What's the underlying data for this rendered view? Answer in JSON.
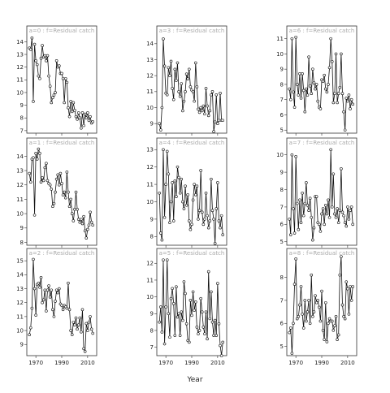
{
  "chart_data": {
    "type": "line",
    "xlabel": "Year",
    "x_ticks": [
      1970,
      1990,
      2010
    ],
    "x_range": [
      1963,
      2017
    ],
    "strip_prefix": "f=Residual catch",
    "series_style": {
      "line_color": "#111111",
      "point_style": "open-circle"
    },
    "panels": [
      {
        "strip": "a=0  :  f=Residual catch",
        "y_ticks": [
          7,
          8,
          9,
          10,
          11,
          12,
          13,
          14
        ],
        "y_range": [
          6.8,
          14.6
        ],
        "x": [
          1965,
          1966,
          1967,
          1968,
          1969,
          1970,
          1971,
          1972,
          1973,
          1974,
          1975,
          1976,
          1977,
          1978,
          1979,
          1980,
          1981,
          1982,
          1983,
          1984,
          1985,
          1986,
          1987,
          1988,
          1989,
          1990,
          1991,
          1992,
          1993,
          1994,
          1995,
          1996,
          1997,
          1998,
          1999,
          2000,
          2001,
          2002,
          2003,
          2004,
          2005,
          2006,
          2007,
          2008,
          2009,
          2010,
          2011,
          2012,
          2013,
          2014
        ],
        "y": [
          13.5,
          13.4,
          14.3,
          9.3,
          13.8,
          12.5,
          12.2,
          11.3,
          11.1,
          12.7,
          13.7,
          12.8,
          12.9,
          12.5,
          12.9,
          11.3,
          10.5,
          9.2,
          9.6,
          9.8,
          10.0,
          12.5,
          12.0,
          12.1,
          11.5,
          11.5,
          11.1,
          9.2,
          11.1,
          10.8,
          8.8,
          8.1,
          9.3,
          8.5,
          9.2,
          8.6,
          8.1,
          7.9,
          8.4,
          8.0,
          7.2,
          8.4,
          7.4,
          8.3,
          8.0,
          8.4,
          7.8,
          8.1,
          7.6,
          7.7
        ]
      },
      {
        "strip": "a=1  :  f=Residual catch",
        "y_ticks": [
          8,
          9,
          10,
          11,
          12,
          13,
          14
        ],
        "y_range": [
          7.8,
          14.7
        ],
        "x": [
          1965,
          1966,
          1967,
          1968,
          1969,
          1970,
          1971,
          1972,
          1973,
          1974,
          1975,
          1976,
          1977,
          1978,
          1979,
          1980,
          1981,
          1982,
          1983,
          1984,
          1985,
          1986,
          1987,
          1988,
          1989,
          1990,
          1991,
          1992,
          1993,
          1994,
          1995,
          1996,
          1997,
          1998,
          1999,
          2000,
          2001,
          2002,
          2003,
          2004,
          2005,
          2006,
          2007,
          2008,
          2009,
          2010,
          2011,
          2012,
          2013,
          2014
        ],
        "y": [
          12.8,
          12.2,
          13.8,
          13.9,
          9.9,
          14.2,
          13.8,
          14.5,
          14.2,
          12.2,
          12.5,
          12.3,
          13.2,
          13.5,
          12.3,
          12.1,
          12.0,
          11.7,
          10.5,
          10.7,
          11.5,
          12.4,
          12.7,
          12.0,
          12.8,
          12.1,
          11.3,
          11.5,
          11.1,
          12.9,
          11.5,
          10.5,
          11.0,
          10.0,
          9.5,
          10.3,
          11.5,
          10.3,
          9.6,
          9.4,
          9.6,
          9.3,
          9.8,
          8.8,
          8.3,
          8.9,
          9.2,
          10.1,
          9.4,
          9.2
        ]
      },
      {
        "strip": "a=2  :  f=Residual catch",
        "y_ticks": [
          9,
          10,
          11,
          12,
          13,
          14,
          15
        ],
        "y_range": [
          8.2,
          15.3
        ],
        "x": [
          1965,
          1966,
          1967,
          1968,
          1969,
          1970,
          1971,
          1972,
          1973,
          1974,
          1975,
          1976,
          1977,
          1978,
          1979,
          1980,
          1981,
          1982,
          1983,
          1984,
          1985,
          1986,
          1987,
          1988,
          1989,
          1990,
          1991,
          1992,
          1993,
          1994,
          1995,
          1996,
          1997,
          1998,
          1999,
          2000,
          2001,
          2002,
          2003,
          2004,
          2005,
          2006,
          2007,
          2008,
          2009,
          2010,
          2011,
          2012,
          2013,
          2014
        ],
        "y": [
          9.7,
          10.2,
          11.6,
          15.1,
          13.0,
          11.1,
          13.3,
          13.4,
          13.1,
          13.8,
          12.0,
          12.2,
          12.9,
          11.4,
          12.9,
          13.2,
          12.4,
          12.9,
          11.5,
          11.0,
          12.1,
          12.9,
          12.7,
          13.0,
          11.9,
          11.8,
          11.5,
          11.8,
          11.7,
          11.6,
          13.4,
          11.5,
          10.0,
          9.7,
          10.6,
          10.4,
          10.9,
          10.1,
          10.4,
          10.9,
          9.9,
          11.5,
          8.7,
          8.5,
          10.5,
          10.0,
          10.6,
          11.0,
          10.1,
          9.8
        ]
      },
      {
        "strip": "a=3  :  f=Residual catch",
        "y_ticks": [
          9,
          10,
          11,
          12,
          13,
          14
        ],
        "y_range": [
          8.4,
          14.6
        ],
        "x": [
          1965,
          1966,
          1967,
          1968,
          1969,
          1970,
          1971,
          1972,
          1973,
          1974,
          1975,
          1976,
          1977,
          1978,
          1979,
          1980,
          1981,
          1982,
          1983,
          1984,
          1985,
          1986,
          1987,
          1988,
          1989,
          1990,
          1991,
          1992,
          1993,
          1994,
          1995,
          1996,
          1997,
          1998,
          1999,
          2000,
          2001,
          2002,
          2003,
          2004,
          2005,
          2006,
          2007,
          2008,
          2009,
          2010,
          2011,
          2012,
          2013,
          2014
        ],
        "y": [
          9.0,
          8.6,
          10.0,
          14.3,
          12.6,
          10.9,
          10.8,
          12.5,
          12.0,
          12.9,
          11.2,
          10.5,
          12.4,
          11.7,
          12.8,
          11.0,
          10.7,
          11.5,
          9.8,
          10.4,
          11.0,
          12.1,
          11.8,
          12.4,
          11.3,
          11.1,
          11.0,
          10.4,
          12.8,
          11.3,
          9.9,
          9.7,
          10.0,
          9.8,
          10.1,
          9.6,
          11.2,
          10.1,
          9.5,
          9.8,
          10.8,
          11.0,
          8.5,
          9.1,
          10.8,
          9.0,
          9.2,
          10.9,
          9.2,
          9.2
        ]
      },
      {
        "strip": "a=4  :  f=Residual catch",
        "y_ticks": [
          8,
          9,
          10,
          11,
          12,
          13
        ],
        "y_range": [
          7.5,
          13.2
        ],
        "x": [
          1965,
          1966,
          1967,
          1968,
          1969,
          1970,
          1971,
          1972,
          1973,
          1974,
          1975,
          1976,
          1977,
          1978,
          1979,
          1980,
          1981,
          1982,
          1983,
          1984,
          1985,
          1986,
          1987,
          1988,
          1989,
          1990,
          1991,
          1992,
          1993,
          1994,
          1995,
          1996,
          1997,
          1998,
          1999,
          2000,
          2001,
          2002,
          2003,
          2004,
          2005,
          2006,
          2007,
          2008,
          2009,
          2010,
          2011,
          2012,
          2013,
          2014
        ],
        "y": [
          10.5,
          8.2,
          7.8,
          13.0,
          9.1,
          11.0,
          12.9,
          11.6,
          8.8,
          10.0,
          11.1,
          8.9,
          11.2,
          10.3,
          12.0,
          11.4,
          10.5,
          11.3,
          10.0,
          9.6,
          10.9,
          9.8,
          10.4,
          8.9,
          8.4,
          8.7,
          10.1,
          11.0,
          10.4,
          10.9,
          9.0,
          9.5,
          11.8,
          9.4,
          8.7,
          9.0,
          10.5,
          9.2,
          8.5,
          8.9,
          11.3,
          9.5,
          9.0,
          7.6,
          9.6,
          11.1,
          8.9,
          8.5,
          9.2,
          8.1
        ]
      },
      {
        "strip": "a=5  :  f=Residual catch",
        "y_ticks": [
          7,
          8,
          9,
          10,
          11,
          12
        ],
        "y_range": [
          6.5,
          12.4
        ],
        "x": [
          1965,
          1966,
          1967,
          1968,
          1969,
          1970,
          1971,
          1972,
          1973,
          1974,
          1975,
          1976,
          1977,
          1978,
          1979,
          1980,
          1981,
          1982,
          1983,
          1984,
          1985,
          1986,
          1987,
          1988,
          1989,
          1990,
          1991,
          1992,
          1993,
          1994,
          1995,
          1996,
          1997,
          1998,
          1999,
          2000,
          2001,
          2002,
          2003,
          2004,
          2005,
          2006,
          2007,
          2008,
          2009,
          2010,
          2011,
          2012,
          2013,
          2014
        ],
        "y": [
          8.5,
          9.4,
          7.9,
          12.2,
          7.2,
          9.4,
          12.2,
          9.0,
          7.6,
          9.9,
          10.5,
          9.6,
          7.7,
          10.6,
          8.8,
          9.0,
          7.7,
          9.1,
          8.6,
          10.9,
          10.2,
          8.4,
          7.4,
          7.3,
          9.8,
          8.9,
          10.3,
          9.2,
          9.7,
          8.2,
          7.8,
          8.0,
          9.9,
          9.1,
          8.2,
          7.8,
          9.1,
          7.5,
          11.5,
          8.7,
          10.3,
          8.5,
          7.7,
          8.6,
          7.7,
          10.8,
          8.4,
          7.1,
          6.5,
          7.3
        ]
      },
      {
        "strip": "a=6  :  f=Residual catch",
        "y_ticks": [
          5,
          6,
          7,
          8,
          9,
          10,
          11
        ],
        "y_range": [
          4.8,
          11.3
        ],
        "x": [
          1965,
          1966,
          1967,
          1968,
          1969,
          1970,
          1971,
          1972,
          1973,
          1974,
          1975,
          1976,
          1977,
          1978,
          1979,
          1980,
          1981,
          1982,
          1983,
          1984,
          1985,
          1986,
          1987,
          1988,
          1989,
          1990,
          1991,
          1992,
          1993,
          1994,
          1995,
          1996,
          1997,
          1998,
          1999,
          2000,
          2001,
          2002,
          2003,
          2004,
          2005,
          2006,
          2007,
          2008,
          2009,
          2010,
          2011,
          2012,
          2013,
          2014
        ],
        "y": [
          7.7,
          7.0,
          11.0,
          7.5,
          6.5,
          11.1,
          8.0,
          7.3,
          8.7,
          7.1,
          8.7,
          7.6,
          6.2,
          7.7,
          7.3,
          9.8,
          7.9,
          7.4,
          9.0,
          8.1,
          7.7,
          8.0,
          6.9,
          6.5,
          6.4,
          8.3,
          8.2,
          8.6,
          7.7,
          7.5,
          8.0,
          9.1,
          11.0,
          9.5,
          6.8,
          7.4,
          10.0,
          6.8,
          7.4,
          7.8,
          10.0,
          7.4,
          6.2,
          5.0,
          7.1,
          6.9,
          7.3,
          6.4,
          7.0,
          6.7
        ]
      },
      {
        "strip": "a=7  :  f=Residual catch",
        "y_ticks": [
          5,
          6,
          7,
          8,
          9,
          10
        ],
        "y_range": [
          4.8,
          10.5
        ],
        "x": [
          1965,
          1966,
          1967,
          1968,
          1969,
          1970,
          1971,
          1972,
          1973,
          1974,
          1975,
          1976,
          1977,
          1978,
          1979,
          1980,
          1981,
          1982,
          1983,
          1984,
          1985,
          1986,
          1987,
          1988,
          1989,
          1990,
          1991,
          1992,
          1993,
          1994,
          1995,
          1996,
          1997,
          1998,
          1999,
          2000,
          2001,
          2002,
          2003,
          2004,
          2005,
          2006,
          2007,
          2008,
          2009,
          2010,
          2011,
          2012,
          2013,
          2014
        ],
        "y": [
          6.3,
          5.4,
          10.0,
          6.9,
          5.5,
          9.9,
          7.2,
          5.7,
          7.4,
          6.1,
          7.8,
          6.5,
          7.2,
          8.4,
          7.1,
          6.8,
          7.5,
          6.4,
          5.1,
          5.8,
          7.6,
          7.6,
          6.1,
          6.0,
          5.6,
          6.6,
          6.9,
          6.0,
          7.1,
          6.6,
          7.4,
          6.4,
          10.3,
          7.0,
          8.9,
          6.6,
          6.4,
          6.9,
          6.1,
          6.8,
          9.2,
          6.7,
          6.5,
          6.1,
          5.9,
          7.0,
          6.3,
          6.8,
          7.0,
          6.0
        ]
      },
      {
        "strip": "a=8  :  f=Residual catch",
        "y_ticks": [
          5,
          6,
          7,
          8
        ],
        "y_range": [
          4.6,
          8.9
        ],
        "x": [
          1965,
          1966,
          1967,
          1968,
          1969,
          1970,
          1971,
          1972,
          1973,
          1974,
          1975,
          1976,
          1977,
          1978,
          1979,
          1980,
          1981,
          1982,
          1983,
          1984,
          1985,
          1986,
          1987,
          1988,
          1989,
          1990,
          1991,
          1992,
          1993,
          1994,
          1995,
          1996,
          1997,
          1998,
          1999,
          2000,
          2001,
          2002,
          2003,
          2004,
          2005,
          2006,
          2007,
          2008,
          2009,
          2010,
          2011,
          2012,
          2013,
          2014
        ],
        "y": [
          5.6,
          5.8,
          4.7,
          6.0,
          7.7,
          8.8,
          6.2,
          6.3,
          6.8,
          7.6,
          6.4,
          5.8,
          7.0,
          6.1,
          6.5,
          7.0,
          6.0,
          8.1,
          6.3,
          6.5,
          7.2,
          6.9,
          7.0,
          6.7,
          6.1,
          7.4,
          5.7,
          5.3,
          6.9,
          5.2,
          6.0,
          6.2,
          6.1,
          6.1,
          5.7,
          5.9,
          6.3,
          5.3,
          5.5,
          8.1,
          8.9,
          6.8,
          6.3,
          6.2,
          7.8,
          7.5,
          6.4,
          7.6,
          7.0,
          7.6
        ]
      }
    ]
  }
}
